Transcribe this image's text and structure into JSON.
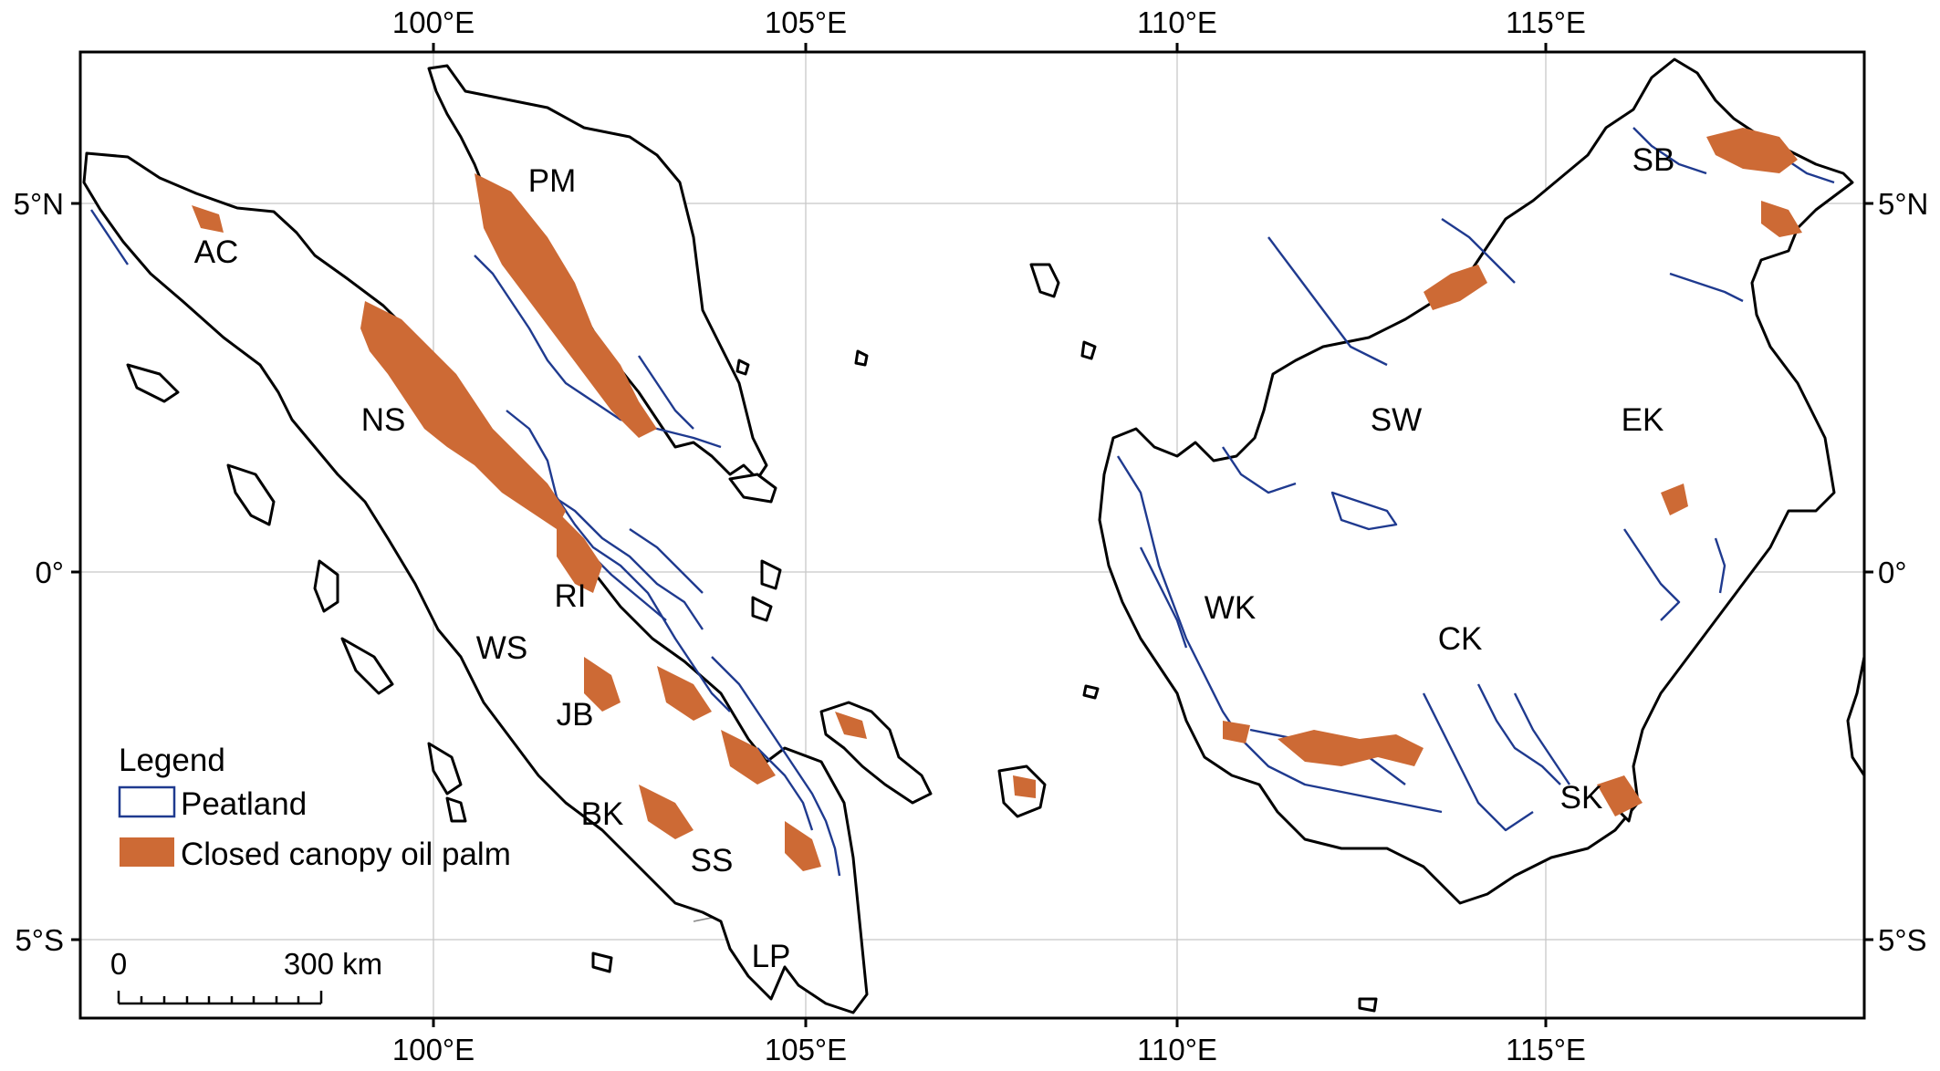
{
  "map": {
    "top_axis_labels": [
      "100°E",
      "105°E",
      "110°E",
      "115°E"
    ],
    "bottom_axis_labels": [
      "100°E",
      "105°E",
      "110°E",
      "115°E"
    ],
    "left_axis_labels": [
      "5°N",
      "0°",
      "5°S"
    ],
    "right_axis_labels": [
      "5°N",
      "0°",
      "5°S"
    ],
    "regions": [
      {
        "code": "AC"
      },
      {
        "code": "PM"
      },
      {
        "code": "NS"
      },
      {
        "code": "RI"
      },
      {
        "code": "WS"
      },
      {
        "code": "JB"
      },
      {
        "code": "BK"
      },
      {
        "code": "SS"
      },
      {
        "code": "LP"
      },
      {
        "code": "SB"
      },
      {
        "code": "SW"
      },
      {
        "code": "EK"
      },
      {
        "code": "WK"
      },
      {
        "code": "CK"
      },
      {
        "code": "SK"
      }
    ],
    "legend": {
      "title": "Legend",
      "items": [
        {
          "label": "Peatland",
          "color": "#1f3a8f",
          "symbol": "outline"
        },
        {
          "label": "Closed canopy oil palm",
          "color": "#cd6a35",
          "symbol": "fill"
        }
      ]
    },
    "scale_bar": {
      "start_label": "0",
      "end_label": "300 km"
    },
    "colors": {
      "coast": "#000000",
      "peat": "#1f3a8f",
      "oil_palm": "#cd6a35",
      "province_border": "#8a8a8a",
      "grid": "#c8c8c8"
    }
  }
}
